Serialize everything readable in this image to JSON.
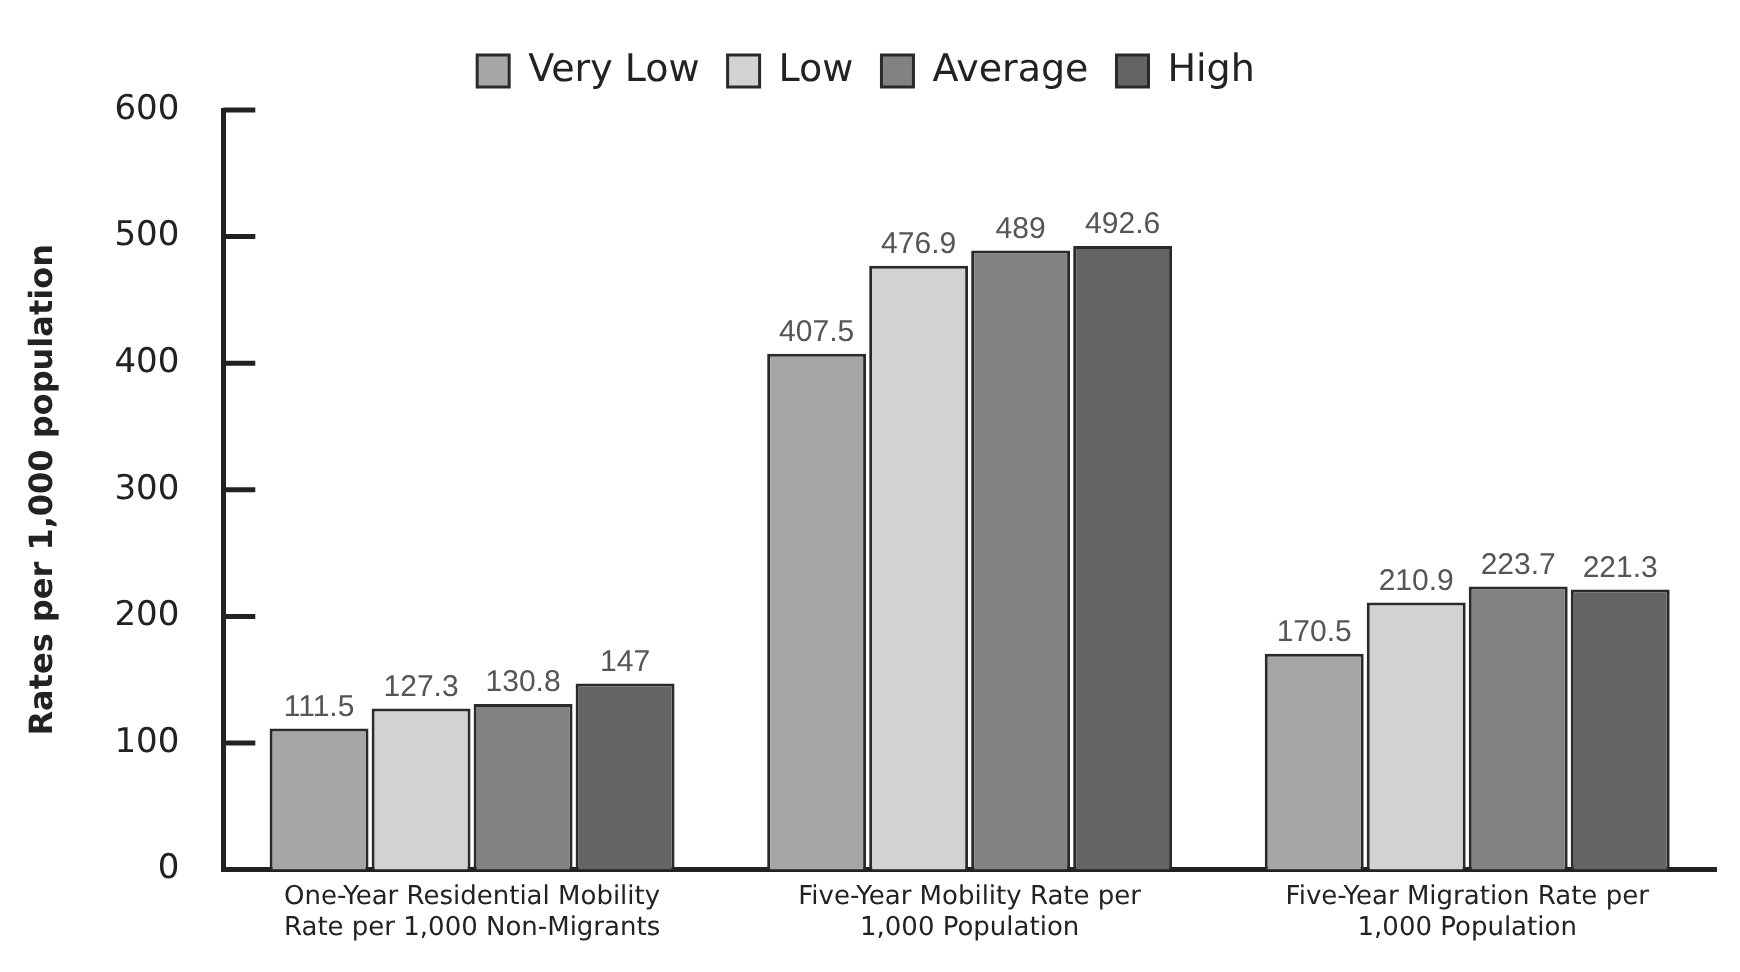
{
  "chart_data": {
    "type": "bar",
    "ylabel": "Rates per 1,000 population",
    "categories": [
      "One-Year Residential Mobility Rate per 1,000 Non-Migrants",
      "Five-Year Mobility Rate per 1,000 Population",
      "Five-Year Migration Rate per 1,000 Population"
    ],
    "series": [
      {
        "name": "Very Low",
        "color": "#a6a6a8",
        "values": [
          111.5,
          407.5,
          170.5
        ]
      },
      {
        "name": "Low",
        "color": "#d2d2d4",
        "values": [
          127.3,
          476.9,
          210.9
        ]
      },
      {
        "name": "Average",
        "color": "#828285",
        "values": [
          130.8,
          489,
          223.7
        ]
      },
      {
        "name": "High",
        "color": "#646466",
        "values": [
          147,
          492.6,
          221.3
        ]
      }
    ],
    "ylim": [
      0,
      600
    ],
    "yticks": [
      0,
      100,
      200,
      300,
      400,
      500,
      600
    ],
    "grid": false,
    "legend": "top",
    "data_labels": true
  }
}
